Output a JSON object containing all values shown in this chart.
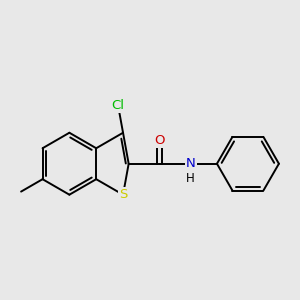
{
  "background_color": "#e8e8e8",
  "bond_color": "#000000",
  "atom_colors": {
    "Cl": "#00bb00",
    "S": "#cccc00",
    "N": "#0000cc",
    "O": "#cc0000",
    "C": "#000000",
    "H": "#000000"
  },
  "bond_width": 1.4,
  "figsize": [
    3.0,
    3.0
  ],
  "dpi": 100
}
